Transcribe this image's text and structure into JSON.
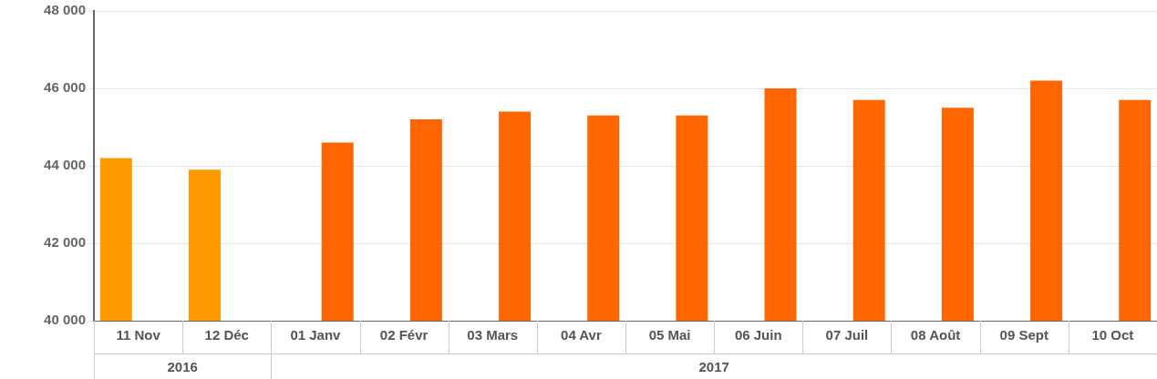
{
  "chart_data": {
    "type": "bar",
    "categories": [
      "11 Nov",
      "12 Déc",
      "01 Janv",
      "02 Févr",
      "03 Mars",
      "04 Avr",
      "05 Mai",
      "06 Juin",
      "07 Juil",
      "08 Août",
      "09 Sept",
      "10 Oct"
    ],
    "series": [
      {
        "color": "#ff9900",
        "values": [
          44200,
          43900,
          null,
          null,
          null,
          null,
          null,
          null,
          null,
          null,
          null,
          null
        ]
      },
      {
        "color": "#ff6600",
        "values": [
          null,
          null,
          44600,
          45200,
          45400,
          45300,
          45300,
          46000,
          45700,
          45500,
          46200,
          45700
        ]
      }
    ],
    "ylim": [
      40000,
      48000
    ],
    "yticks": [
      {
        "value": 40000,
        "label": "40 000"
      },
      {
        "value": 42000,
        "label": "42 000"
      },
      {
        "value": 44000,
        "label": "44 000"
      },
      {
        "value": 46000,
        "label": "46 000"
      },
      {
        "value": 48000,
        "label": "48 000"
      }
    ],
    "grid": "y",
    "legend": false,
    "annotations": [
      "2016",
      "2017"
    ]
  }
}
